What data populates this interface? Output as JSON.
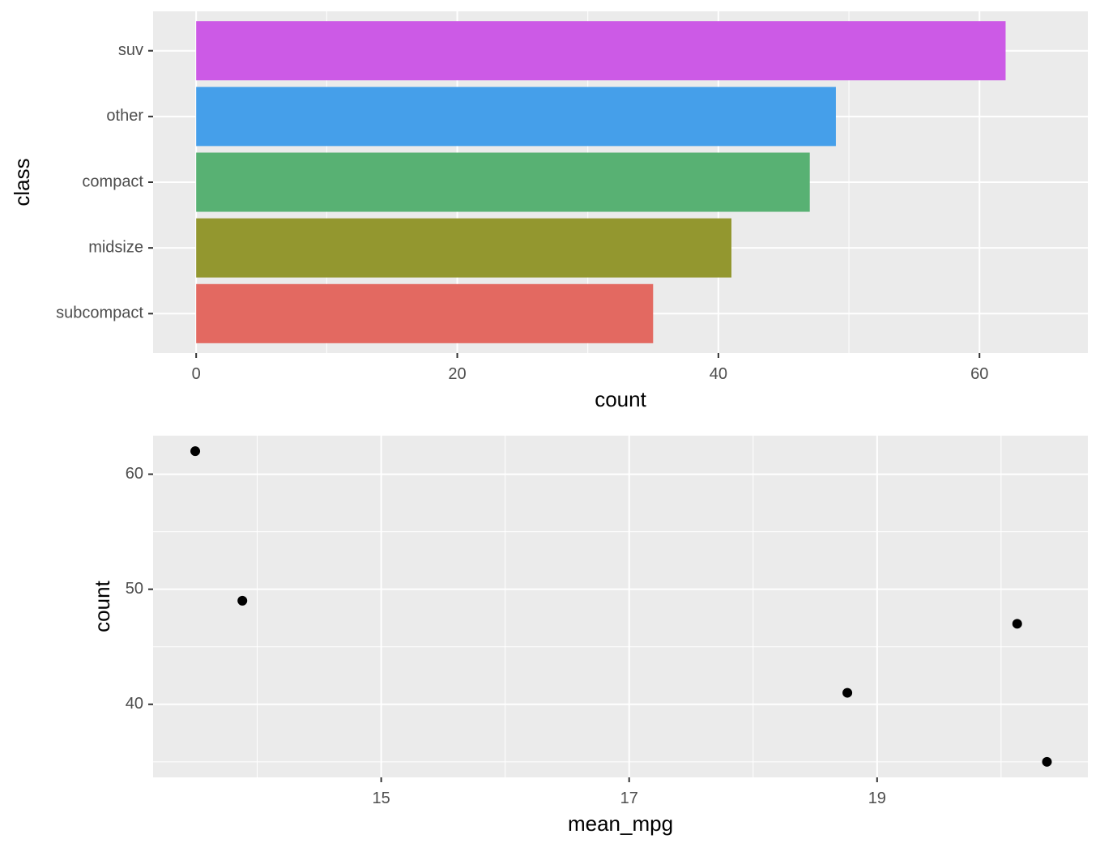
{
  "chart_data": [
    {
      "type": "bar",
      "orientation": "horizontal",
      "xlabel": "count",
      "ylabel": "class",
      "categories": [
        "subcompact",
        "midsize",
        "compact",
        "other",
        "suv"
      ],
      "values": [
        35,
        41,
        47,
        49,
        62
      ],
      "bar_colors": [
        "#E36961",
        "#93972F",
        "#58B173",
        "#459FEA",
        "#CC5AE6"
      ],
      "xlim": [
        -3.3,
        68.3
      ],
      "xticks": [
        0,
        20,
        40,
        60
      ],
      "xtick_labels": [
        "0",
        "20",
        "40",
        "60"
      ],
      "panel_background": "#EBEBEB",
      "grid": true,
      "legend": "none"
    },
    {
      "type": "scatter",
      "xlabel": "mean_mpg",
      "ylabel": "count",
      "points": [
        {
          "x": 13.5,
          "y": 62
        },
        {
          "x": 13.88,
          "y": 49
        },
        {
          "x": 18.76,
          "y": 41
        },
        {
          "x": 20.13,
          "y": 47
        },
        {
          "x": 20.37,
          "y": 35
        }
      ],
      "xlim": [
        13.16,
        20.7
      ],
      "ylim": [
        33.65,
        63.35
      ],
      "xticks": [
        15,
        17,
        19
      ],
      "xtick_labels": [
        "15",
        "17",
        "19"
      ],
      "yticks": [
        40,
        50,
        60
      ],
      "ytick_labels": [
        "40",
        "50",
        "60"
      ],
      "point_color": "#000000",
      "panel_background": "#EBEBEB",
      "grid": true,
      "legend": "none"
    }
  ]
}
